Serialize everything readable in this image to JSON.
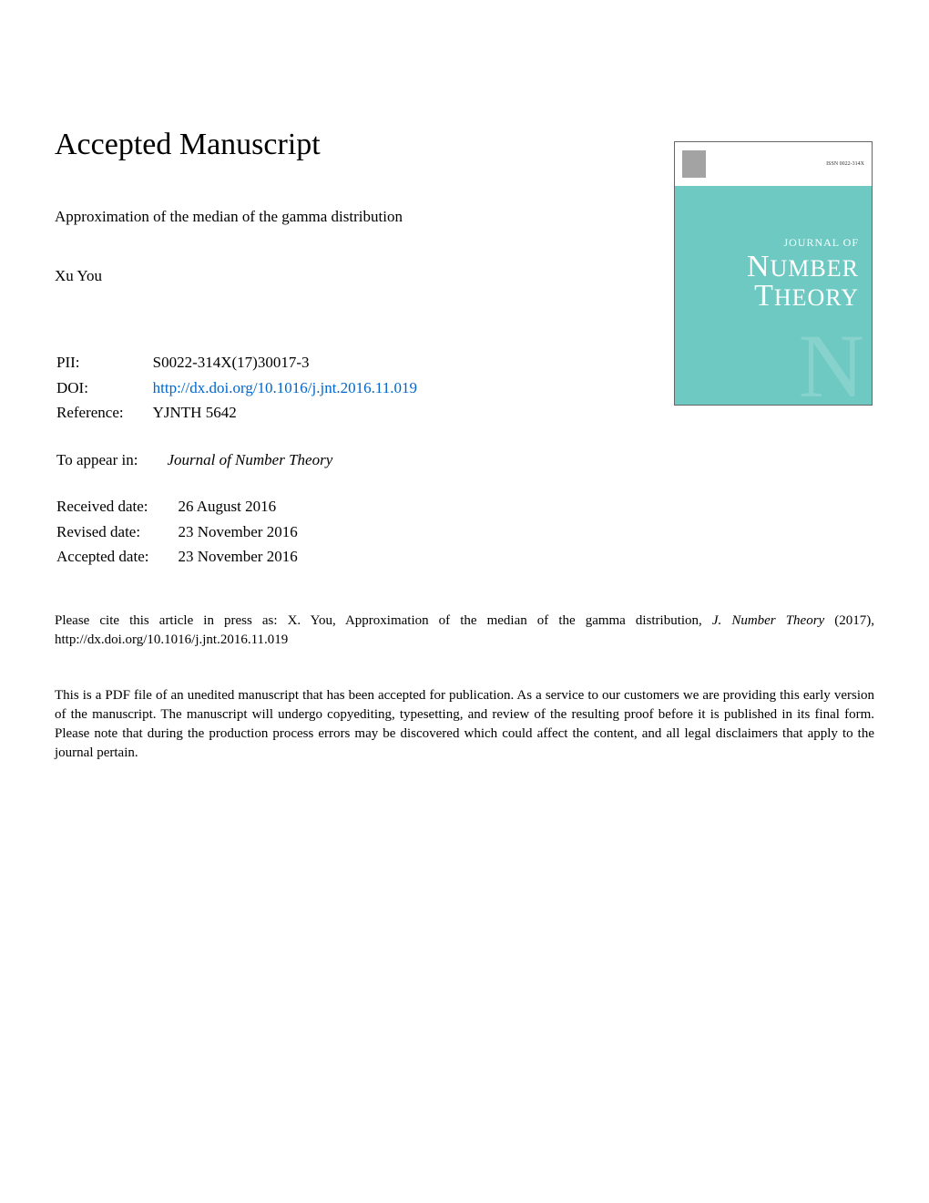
{
  "heading": "Accepted Manuscript",
  "article_title": "Approximation of the median of the gamma distribution",
  "author": "Xu You",
  "metadata": {
    "pii_label": "PII:",
    "pii_value": "S0022-314X(17)30017-3",
    "doi_label": "DOI:",
    "doi_value": "http://dx.doi.org/10.1016/j.jnt.2016.11.019",
    "reference_label": "Reference:",
    "reference_value": "YJNTH 5642",
    "appear_label": "To appear in:",
    "appear_value": "Journal of Number Theory",
    "received_label": "Received date:",
    "received_value": "26 August 2016",
    "revised_label": "Revised date:",
    "revised_value": "23 November 2016",
    "accepted_label": "Accepted date:",
    "accepted_value": "23 November 2016"
  },
  "citation_prefix": "Please cite this article in press as: X. You, Approximation of the median of the gamma distribution, ",
  "citation_journal": "J. Number Theory",
  "citation_suffix": " (2017), http://dx.doi.org/10.1016/j.jnt.2016.11.019",
  "disclaimer": "This is a PDF file of an unedited manuscript that has been accepted for publication. As a service to our customers we are providing this early version of the manuscript. The manuscript will undergo copyediting, typesetting, and review of the resulting proof before it is published in its final form. Please note that during the production process errors may be discovered which could affect the content, and all legal disclaimers that apply to the journal pertain.",
  "cover": {
    "journal_of": "JOURNAL OF",
    "name1_big": "N",
    "name1_rest": "UMBER",
    "name2_big": "T",
    "name2_rest": "HEORY",
    "watermark": "N",
    "issn": "ISSN 0022-314X",
    "background_color": "#6dc9c2",
    "text_color": "#ffffff"
  }
}
